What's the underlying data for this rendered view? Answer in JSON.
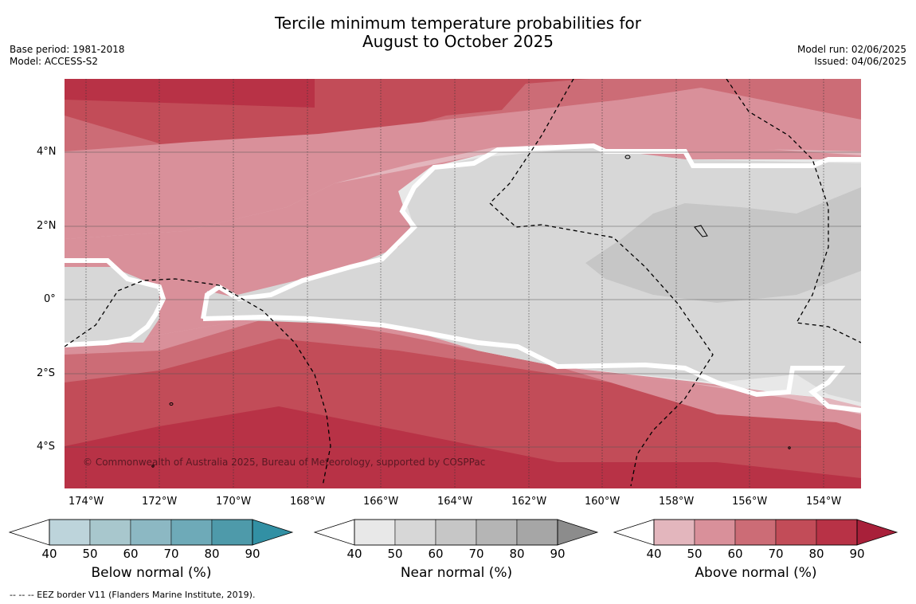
{
  "title": {
    "line1": "Tercile minimum temperature probabilities for",
    "line2": "August to October 2025"
  },
  "meta_left": {
    "base_period": "Base period: 1981-2018",
    "model": "Model: ACCESS-S2"
  },
  "meta_right": {
    "model_run": "Model run: 02/06/2025",
    "issued": "Issued: 04/06/2025"
  },
  "map": {
    "lon_labels": [
      "174°W",
      "172°W",
      "170°W",
      "168°W",
      "166°W",
      "164°W",
      "162°W",
      "160°W",
      "158°W",
      "156°W",
      "154°W"
    ],
    "lat_labels": [
      "4°N",
      "2°N",
      "0°",
      "2°S",
      "4°S"
    ],
    "copyright": "© Commonwealth of Australia 2025, Bureau of Meteorology, supported by COSPPac",
    "colors": {
      "above_40": "#e3b6bd",
      "above_50": "#d9909a",
      "above_60": "#cc6c76",
      "above_70": "#c24c58",
      "above_80": "#b83246",
      "above_90": "#a8203a",
      "near_40": "#e8e8e8",
      "near_50": "#d7d7d7",
      "near_60": "#c6c6c6"
    }
  },
  "colorbars": [
    {
      "label": "Below normal (%)",
      "ticks": [
        "40",
        "50",
        "60",
        "70",
        "80",
        "90"
      ],
      "colors": [
        "#bdd4db",
        "#a8c7cd",
        "#8cb8c3",
        "#6eaab8",
        "#4e9aaa",
        "#3290a4"
      ]
    },
    {
      "label": "Near normal (%)",
      "ticks": [
        "40",
        "50",
        "60",
        "70",
        "80",
        "90"
      ],
      "colors": [
        "#e8e8e8",
        "#d7d7d7",
        "#c6c6c6",
        "#b5b5b5",
        "#a6a6a6",
        "#8c8c8c"
      ]
    },
    {
      "label": "Above normal (%)",
      "ticks": [
        "40",
        "50",
        "60",
        "70",
        "80",
        "90"
      ],
      "colors": [
        "#e3b6bd",
        "#d9909a",
        "#cc6c76",
        "#c24c58",
        "#b83246",
        "#a8203a"
      ]
    }
  ],
  "footer": "--  --  -- EEZ border V11 (Flanders Marine Institute, 2019)."
}
